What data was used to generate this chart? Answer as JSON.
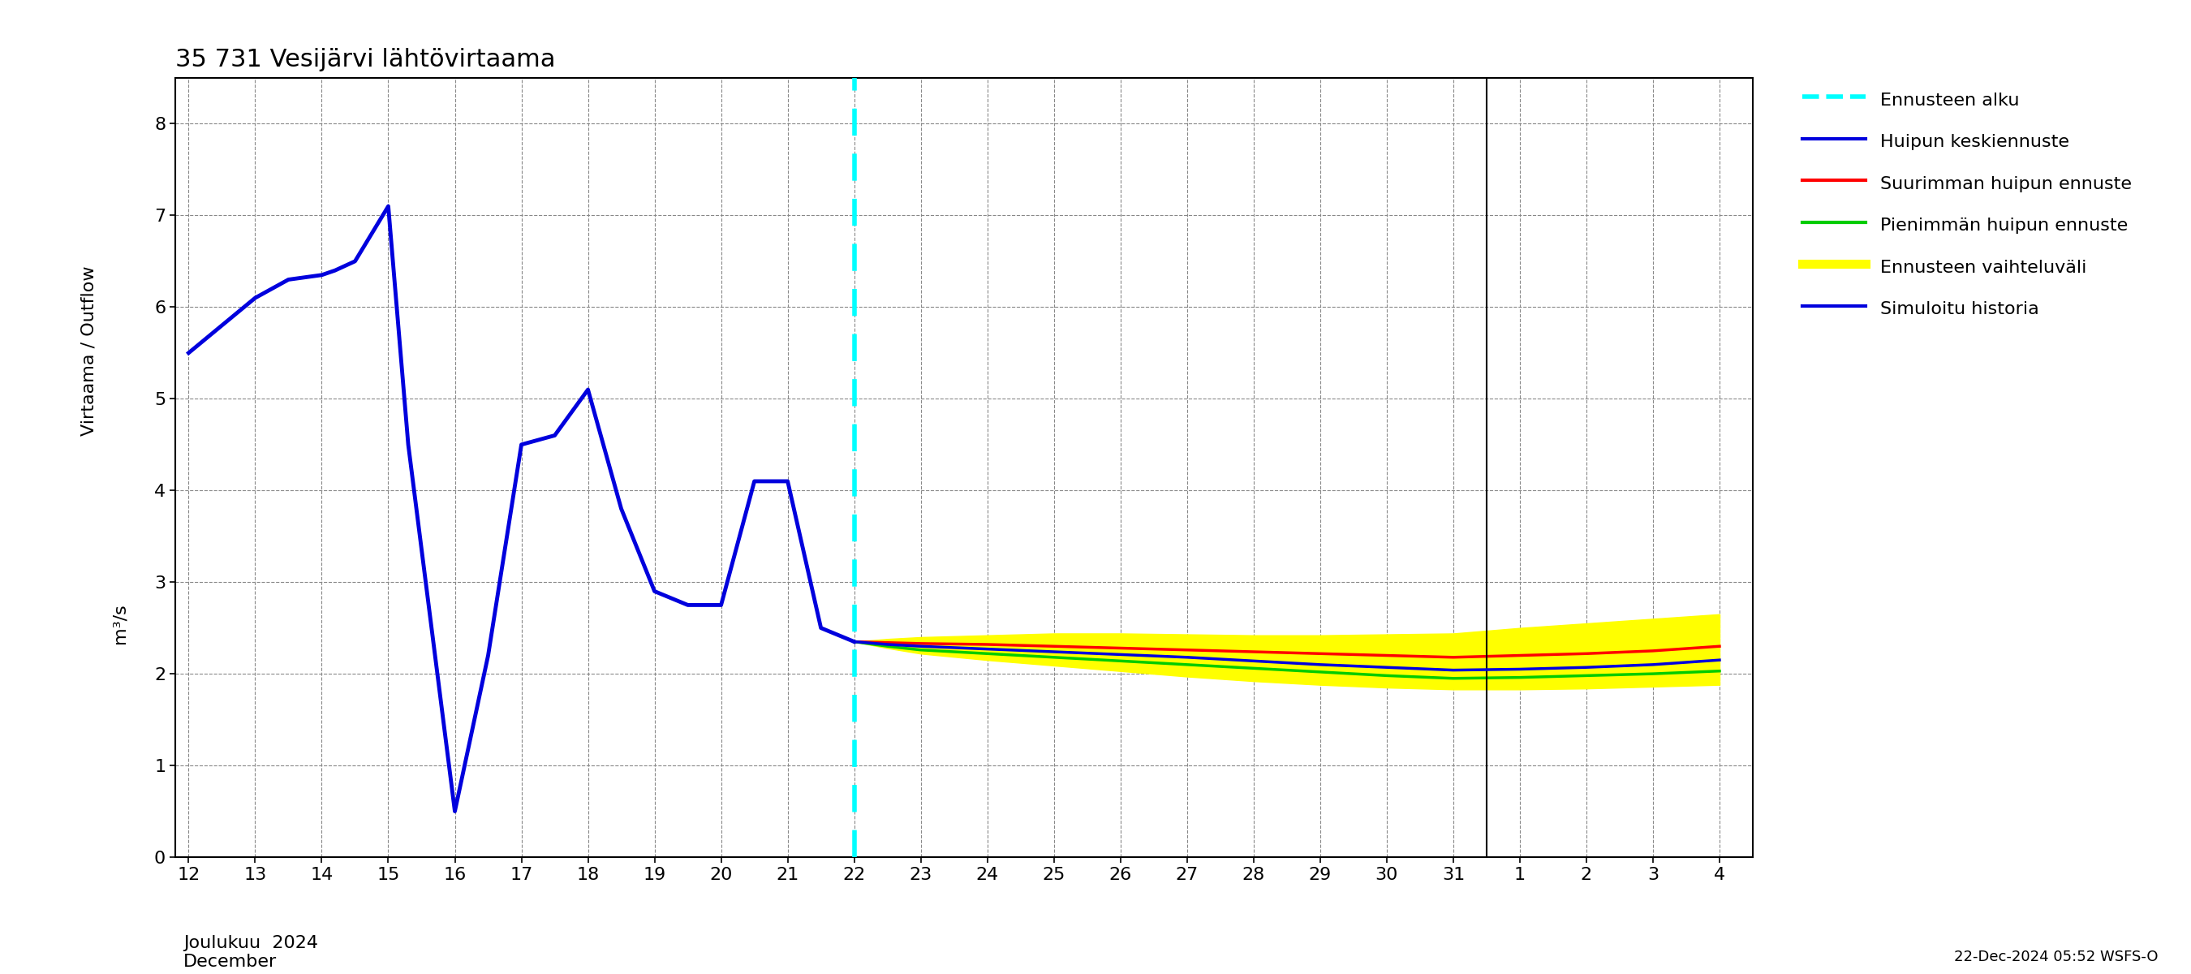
{
  "title": "35 731 Vesijärvi lähtövirtaama",
  "ylabel1": "Virtaama / Outflow",
  "ylabel2": "m³/s",
  "xlabel_main": "Joulukuu  2024\nDecember",
  "footnote": "22-Dec-2024 05:52 WSFS-O",
  "background_color": "#ffffff",
  "grid_color": "#888888",
  "hist_color": "#0000dd",
  "forecast_start_x": 22,
  "vert_line_color": "#00ffff",
  "mean_color": "#0000dd",
  "max_color": "#ff0000",
  "min_color": "#00cc00",
  "band_color": "#ffff00",
  "sep_color": "#000000",
  "legend_entries": [
    {
      "label": "Ennusteen alku",
      "color": "#00ffff",
      "linestyle": "dashed",
      "lw": 4
    },
    {
      "label": "Huipun keskiennuste",
      "color": "#0000dd",
      "linestyle": "solid",
      "lw": 3
    },
    {
      "label": "Suurimman huipun ennuste",
      "color": "#ff0000",
      "linestyle": "solid",
      "lw": 3
    },
    {
      "label": "Pienimmän huipun ennuste",
      "color": "#00cc00",
      "linestyle": "solid",
      "lw": 3
    },
    {
      "label": "Ennusteen vaihteluväli",
      "color": "#ffff00",
      "linestyle": "solid",
      "lw": 8
    },
    {
      "label": "Simuloitu historia",
      "color": "#0000dd",
      "linestyle": "solid",
      "lw": 3
    }
  ],
  "hist_x": [
    12,
    12.5,
    13,
    13.5,
    14,
    14.2,
    14.5,
    15,
    15.3,
    16,
    16.5,
    17,
    17.5,
    18,
    18.5,
    19,
    19.5,
    20,
    20.5,
    21,
    21.5,
    22
  ],
  "hist_y": [
    5.5,
    5.8,
    6.1,
    6.3,
    6.35,
    6.4,
    6.5,
    7.1,
    4.5,
    0.5,
    2.2,
    4.5,
    4.6,
    5.1,
    3.8,
    2.9,
    2.75,
    2.75,
    4.1,
    4.1,
    2.5,
    2.35
  ],
  "fc_x": [
    22,
    22.5,
    23,
    24,
    25,
    26,
    27,
    28,
    29,
    30,
    31,
    32,
    33,
    34,
    35
  ],
  "fc_mean": [
    2.35,
    2.32,
    2.3,
    2.27,
    2.24,
    2.21,
    2.18,
    2.14,
    2.1,
    2.07,
    2.04,
    2.05,
    2.07,
    2.1,
    2.15
  ],
  "fc_max": [
    2.35,
    2.34,
    2.33,
    2.32,
    2.3,
    2.28,
    2.26,
    2.24,
    2.22,
    2.2,
    2.18,
    2.2,
    2.22,
    2.25,
    2.3
  ],
  "fc_min": [
    2.35,
    2.3,
    2.26,
    2.22,
    2.18,
    2.14,
    2.1,
    2.06,
    2.02,
    1.98,
    1.95,
    1.96,
    1.98,
    2.0,
    2.03
  ],
  "fc_band_upper": [
    2.35,
    2.38,
    2.4,
    2.42,
    2.44,
    2.44,
    2.43,
    2.42,
    2.42,
    2.43,
    2.44,
    2.5,
    2.55,
    2.6,
    2.65
  ],
  "fc_band_lower": [
    2.35,
    2.28,
    2.22,
    2.15,
    2.09,
    2.03,
    1.97,
    1.92,
    1.88,
    1.85,
    1.83,
    1.83,
    1.84,
    1.86,
    1.88
  ],
  "xticks": [
    12,
    13,
    14,
    15,
    16,
    17,
    18,
    19,
    20,
    21,
    22,
    23,
    24,
    25,
    26,
    27,
    28,
    29,
    30,
    31,
    32,
    33,
    34,
    35
  ],
  "xticklabels": [
    "12",
    "13",
    "14",
    "15",
    "16",
    "17",
    "18",
    "19",
    "20",
    "21",
    "22",
    "23",
    "24",
    "25",
    "26",
    "27",
    "28",
    "29",
    "30",
    "31",
    "1",
    "2",
    "3",
    "4"
  ],
  "yticks": [
    0,
    1,
    2,
    3,
    4,
    5,
    6,
    7,
    8
  ],
  "ylim": [
    0,
    8.5
  ],
  "xlim": [
    11.8,
    35.5
  ]
}
